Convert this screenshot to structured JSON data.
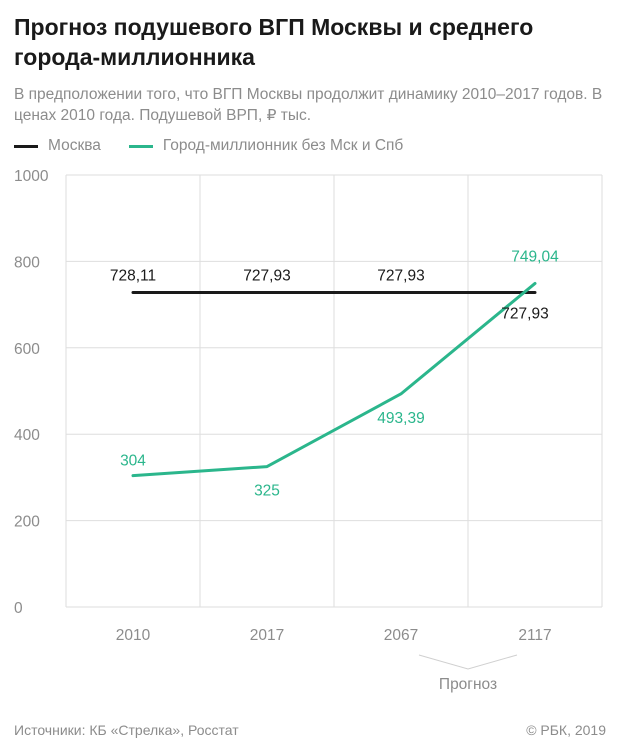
{
  "title": "Прогноз подушевого ВГП Москвы и среднего города-миллионника",
  "subtitle": "В предположении того, что ВГП Москвы продолжит динамику 2010–2017 годов. В ценах 2010 года. Подушевой ВРП, ₽ тыс.",
  "legend": [
    {
      "label": "Москва",
      "color": "#1a1a1a"
    },
    {
      "label": "Город-миллионник без Мск и Спб",
      "color": "#2bb68c"
    }
  ],
  "forecast_label": "Прогноз",
  "footer": {
    "source": "Источники: КБ «Стрелка», Росстат",
    "copyright": "© РБК, 2019"
  },
  "chart_data": {
    "type": "line",
    "title": "Прогноз подушевого ВГП Москвы и среднего города-миллионника",
    "xlabel": "",
    "ylabel": "Подушевой ВРП, ₽ тыс.",
    "categories": [
      "2010",
      "2017",
      "2067",
      "2117"
    ],
    "ylim": [
      0,
      1000
    ],
    "yticks": [
      0,
      200,
      400,
      600,
      800,
      1000
    ],
    "grid": true,
    "series": [
      {
        "name": "Москва",
        "color": "#1a1a1a",
        "values": [
          728.11,
          727.93,
          727.93,
          727.93
        ],
        "labels": [
          "728,11",
          "727,93",
          "727,93",
          "727,93"
        ]
      },
      {
        "name": "Город-миллионник без Мск и Спб",
        "color": "#2bb68c",
        "values": [
          304,
          325,
          493.39,
          749.04
        ],
        "labels": [
          "304",
          "325",
          "493,39",
          "749,04"
        ]
      }
    ]
  }
}
